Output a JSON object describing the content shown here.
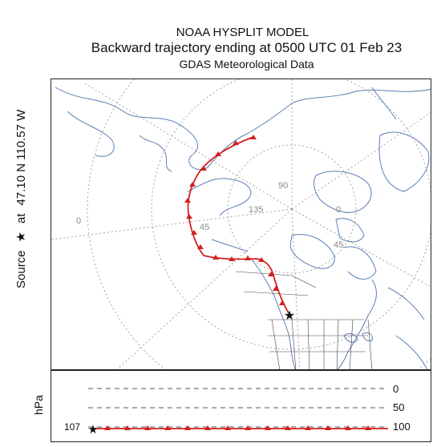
{
  "header": {
    "model": "NOAA HYSPLIT MODEL",
    "subtitle": "Backward trajectory ending at 0500 UTC 01 Feb 23",
    "met_data": "GDAS Meteorological Data"
  },
  "source": {
    "label": "Source",
    "star_glyph": "★",
    "at": "at",
    "coords": "47.10 N  110.57 W",
    "start_level": "107"
  },
  "grid_labels": {
    "lon_0": "0",
    "lon_45_left": "45",
    "lon_45_right": "45",
    "lon_90": "90",
    "lon_135": "135",
    "lat_0_right": "0"
  },
  "vertical_panel": {
    "unit": "hPa",
    "levels": [
      "0",
      "50",
      "100"
    ]
  },
  "colors": {
    "trajectory": "#d21f1f",
    "coastline": "#5b7fb5",
    "political": "#444444",
    "grid": "#9a9a9a"
  }
}
